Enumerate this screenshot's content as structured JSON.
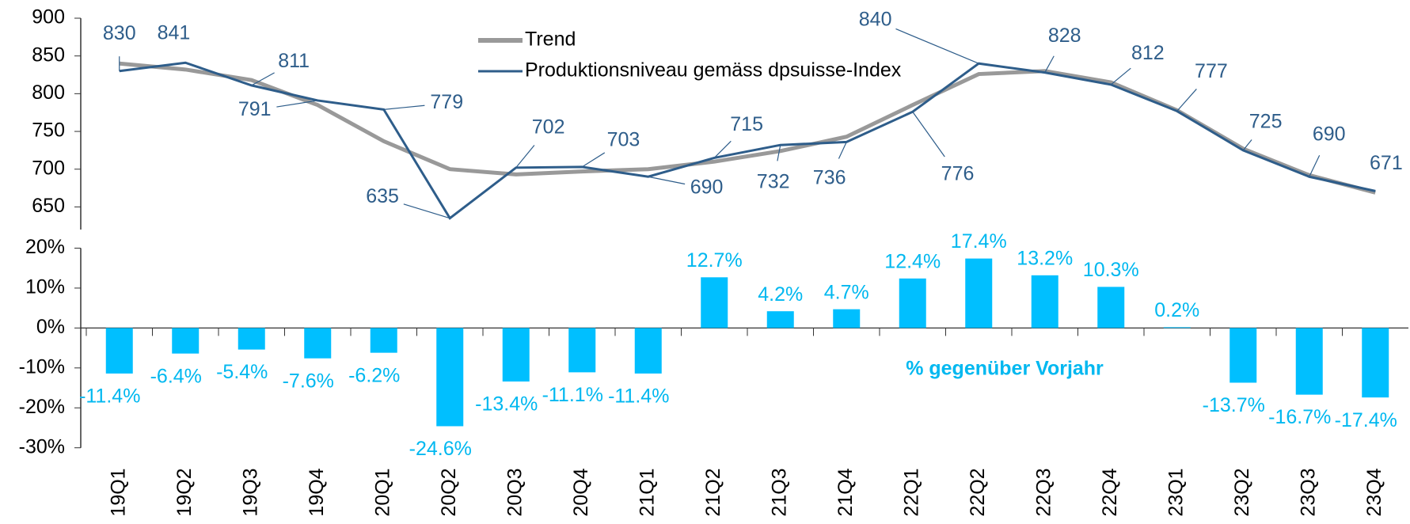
{
  "chart_data": [
    {
      "type": "line",
      "series": [
        {
          "name": "Trend",
          "color": "#999999",
          "values": [
            840,
            832,
            818,
            785,
            737,
            700,
            693,
            697,
            700,
            710,
            724,
            743,
            785,
            826,
            830,
            815,
            778,
            727,
            692,
            669
          ]
        },
        {
          "name": "Produktionsniveau gemäss dpsuisse-Index",
          "color": "#2e5d8a",
          "values": [
            830,
            841,
            811,
            791,
            779,
            635,
            702,
            703,
            690,
            715,
            732,
            736,
            776,
            840,
            828,
            812,
            777,
            725,
            690,
            671
          ]
        }
      ],
      "ylim": [
        620,
        900
      ],
      "yticks": [
        650,
        700,
        750,
        800,
        850,
        900
      ]
    },
    {
      "type": "bar",
      "annotation": "% gegenüber Vorjahr",
      "categories": [
        "19Q1",
        "19Q2",
        "19Q3",
        "19Q4",
        "20Q1",
        "20Q2",
        "20Q3",
        "20Q4",
        "21Q1",
        "21Q2",
        "21Q3",
        "21Q4",
        "22Q1",
        "22Q2",
        "22Q3",
        "22Q4",
        "23Q1",
        "23Q2",
        "23Q3",
        "23Q4"
      ],
      "values": [
        -11.4,
        -6.4,
        -5.4,
        -7.6,
        -6.2,
        -24.6,
        -13.4,
        -11.1,
        -11.4,
        12.7,
        4.2,
        4.7,
        12.4,
        17.4,
        13.2,
        10.3,
        0.2,
        -13.7,
        -16.7,
        -17.4
      ],
      "value_labels": [
        "-11.4%",
        "-6.4%",
        "-5.4%",
        "-7.6%",
        "-6.2%",
        "-24.6%",
        "-13.4%",
        "-11.1%",
        "-11.4%",
        "12.7%",
        "4.2%",
        "4.7%",
        "12.4%",
        "17.4%",
        "13.2%",
        "10.3%",
        "0.2%",
        "-13.7%",
        "-16.7%",
        "-17.4%"
      ],
      "color": "#00bfff",
      "ylim": [
        -30,
        20
      ],
      "yticks": [
        {
          "value": -30,
          "label": "-30%"
        },
        {
          "value": -20,
          "label": "-20%"
        },
        {
          "value": -10,
          "label": "-10%"
        },
        {
          "value": 0,
          "label": "0%"
        },
        {
          "value": 10,
          "label": "10%"
        },
        {
          "value": 20,
          "label": "20%"
        }
      ]
    }
  ]
}
